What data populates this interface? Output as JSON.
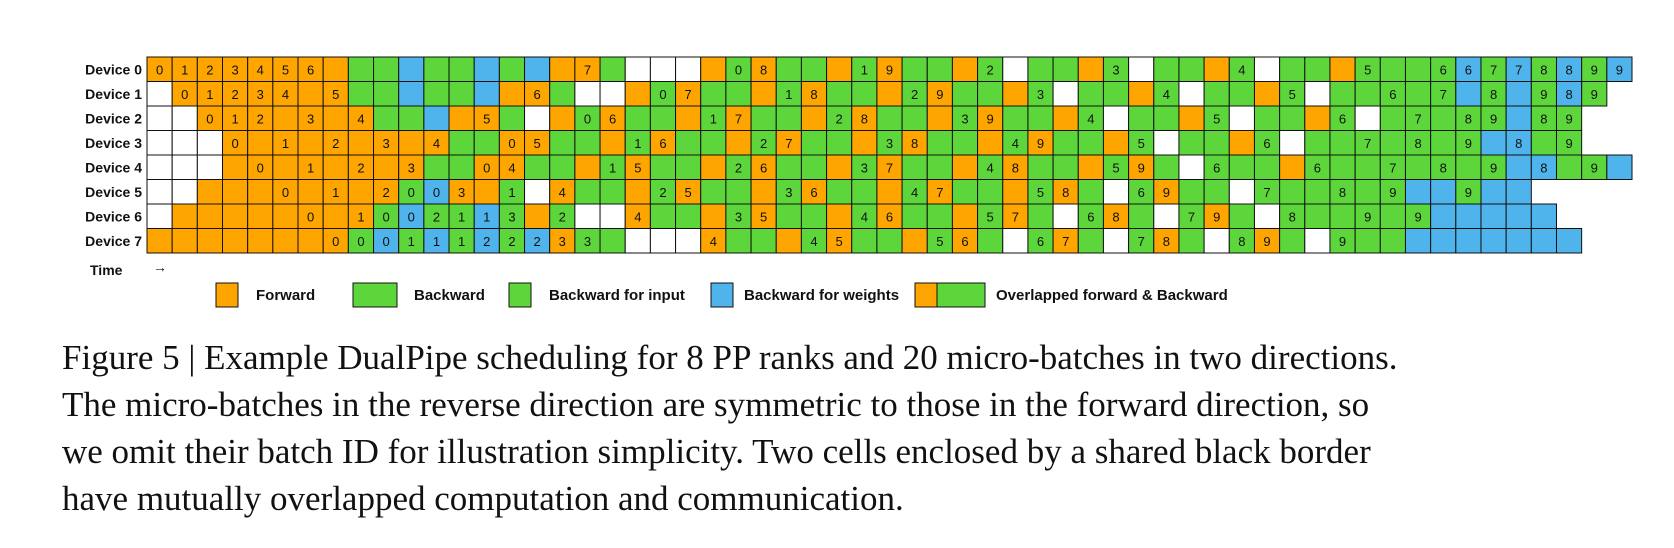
{
  "colors": {
    "F": "#ffa500",
    "B": "#5cd63a",
    "I": "#5cd63a",
    "W": "#4fb4ec",
    "E": "#ffffff"
  },
  "devices": [
    "Device 0",
    "Device 1",
    "Device 2",
    "Device 3",
    "Device 4",
    "Device 5",
    "Device 6",
    "Device 7"
  ],
  "schedule_encoding": "F=Forward, B=Backward, I=Backward for input, W=Backward for weights, E=idle; optional digit = micro-batch ID",
  "schedule": [
    "F0 F1 F2 F3 F4 F5 F6 F B I W I I W I W F F7 B E E E F B0 F8 B B F B1 F9 B B F B2 E B B F B3 E B B F B4 E B B F B5 B B I6 W6 I7 W7 I8 W8 I9 W9",
    "E F0 F1 F2 F3 F4 F F5 B I W B I W F F6 B E E F B0 F7 B B F B1 F8 B B F B2 F9 B B F B3 E B B F B4 E B B F B5 E B B I6 B I7 W I8 W I9 W8 I9",
    "E E F0 F1 F2 F F3 F F4 B I W F F5 B E F B0 F6 B B F B1 F7 B B F B2 F8 B B F B3 F9 B B F B4 E B B F B5 E B B F B6 E B I7 B I8 I9 W B8 I9",
    "E E E F0 F F1 F F2 F F3 F F4 B B F0 F5 B B F B1 F6 B B F B2 F7 B B F B3 F8 B B F B4 F9 B B F B5 E B B F B6 E B B B7 B I8 B I9 W W8 B I9",
    "E E E F F0 F F1 F F2 F F3 B B F0 F4 B B F B1 F5 B B F B2 F6 B B F B3 F7 B B F B4 F8 B B F B5 F9 B E B6 B B F B6 B B B7 B I8 B I9 W W8 B I9 W",
    "E E F F F F0 F F1 F F2 I0 W0 F3 F B1 E F4 B B F B2 F5 B B F B3 F6 B B F B4 F7 B B F B5 F8 B E B6 F9 B B E B7 B B B8 B I9 W W B9 W W",
    "E F F F F F F0 F F1 I0 W0 I2 I1 W1 I3 F B2 E E F4 B B F B3 F5 B B F B4 F6 B B F B5 F7 B E B6 F8 B E B7 F9 B E B8 B B B9 B I9 W W W W W",
    "F F F F F F F F0 I0 W0 I1 W1 I1 W2 I2 W2 F3 B3 B E E E F4 B B F B4 F5 B B F B5 F6 B E B6 F7 B E B7 F8 B E B8 F9 B E B9 B B W W W W W W W"
  ],
  "time_label": "Time",
  "time_arrow": "→",
  "legend": [
    {
      "key": "F",
      "label": "Forward"
    },
    {
      "key": "B",
      "label": "Backward"
    },
    {
      "key": "I",
      "label": "Backward for input"
    },
    {
      "key": "W",
      "label": "Backward for weights"
    },
    {
      "key": "FB",
      "label": "Overlapped forward & Backward"
    }
  ],
  "caption": [
    "Figure 5 | Example DualPipe scheduling for 8 PP ranks and 20 micro-batches in two directions.",
    "The micro-batches in the reverse direction are symmetric to those in the forward direction, so",
    "we omit their batch ID for illustration simplicity. Two cells enclosed by a shared black border",
    "have mutually overlapped computation and communication."
  ]
}
